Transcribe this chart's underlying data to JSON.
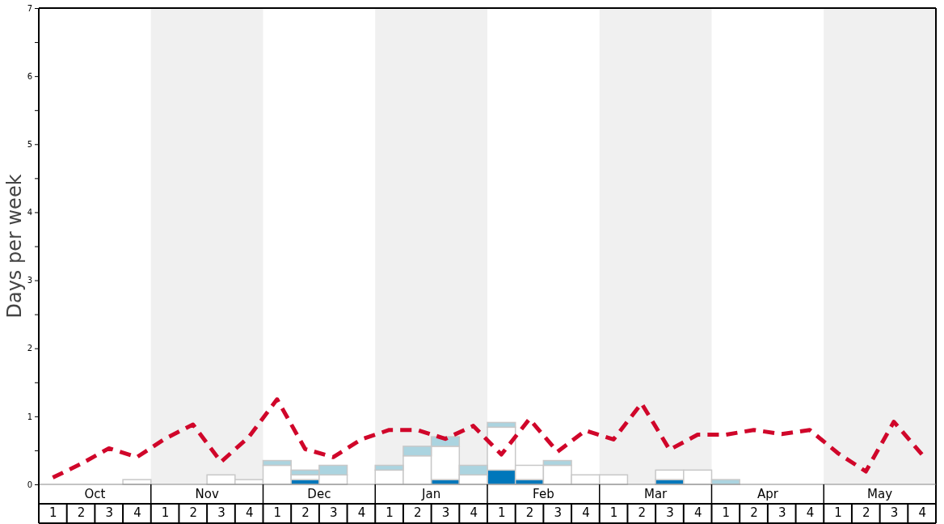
{
  "chart_data": {
    "type": "bar",
    "stacked": true,
    "ylabel": "Days per week",
    "categories": [
      "1",
      "2",
      "3",
      "4",
      "1",
      "2",
      "3",
      "4",
      "1",
      "2",
      "3",
      "4",
      "1",
      "2",
      "3",
      "4",
      "1",
      "2",
      "3",
      "4",
      "1",
      "2",
      "3",
      "4",
      "1",
      "2",
      "3",
      "4",
      "1",
      "2",
      "3",
      "4"
    ],
    "ylim": [
      0,
      7
    ],
    "yticks": [
      0,
      {
        "value": 0.5,
        "label": null
      },
      1,
      {
        "value": 1.5,
        "label": null
      },
      2,
      {
        "value": 2.5,
        "label": null
      },
      3,
      {
        "value": 3.5,
        "label": null
      },
      4,
      {
        "value": 4.5,
        "label": null
      },
      5,
      {
        "value": 5.5,
        "label": null
      },
      6,
      {
        "value": 6.5,
        "label": null
      },
      7
    ],
    "series": [
      {
        "color": "#0077bb",
        "values": [
          0,
          0,
          0,
          0,
          0,
          0,
          0,
          0,
          0,
          0.07,
          0,
          0,
          0,
          0,
          0.07,
          0,
          0.21,
          0.07,
          0,
          0,
          0,
          0,
          0.07,
          0,
          0,
          0,
          0,
          0,
          0,
          0,
          0,
          0
        ]
      },
      {
        "color": "#ffffff",
        "values": [
          0,
          0,
          0,
          0.07,
          0,
          0,
          0.14,
          0.07,
          0.28,
          0.07,
          0.14,
          0,
          0.21,
          0.42,
          0.49,
          0.14,
          0.63,
          0.21,
          0.28,
          0.14,
          0.14,
          0,
          0.14,
          0.21,
          0,
          0,
          0,
          0,
          0,
          0,
          0,
          0
        ]
      },
      {
        "color": "#abd4e0",
        "values": [
          0,
          0,
          0,
          0,
          0,
          0,
          0,
          0,
          0.07,
          0.07,
          0.14,
          0,
          0.07,
          0.14,
          0.14,
          0.14,
          0.07,
          0,
          0.07,
          0,
          0,
          0,
          0,
          0,
          0.07,
          0,
          0,
          0,
          0,
          0,
          0,
          0
        ]
      },
      {
        "type": "line",
        "color": "#d0062a",
        "line_style": "dashed",
        "values": [
          0.1,
          0.3,
          0.53,
          0.4,
          0.67,
          0.88,
          0.33,
          0.7,
          1.25,
          0.52,
          0.4,
          0.66,
          0.8,
          0.8,
          0.67,
          0.86,
          0.44,
          0.96,
          0.48,
          0.79,
          0.66,
          1.19,
          0.51,
          0.73,
          0.73,
          0.8,
          0.74,
          0.8,
          0.46,
          0.19,
          0.92,
          0.44
        ]
      }
    ],
    "annotations": [
      "Oct",
      "Nov",
      "Dec",
      "Jan",
      "Feb",
      "Mar",
      "Apr",
      "May"
    ],
    "grid": false
  }
}
